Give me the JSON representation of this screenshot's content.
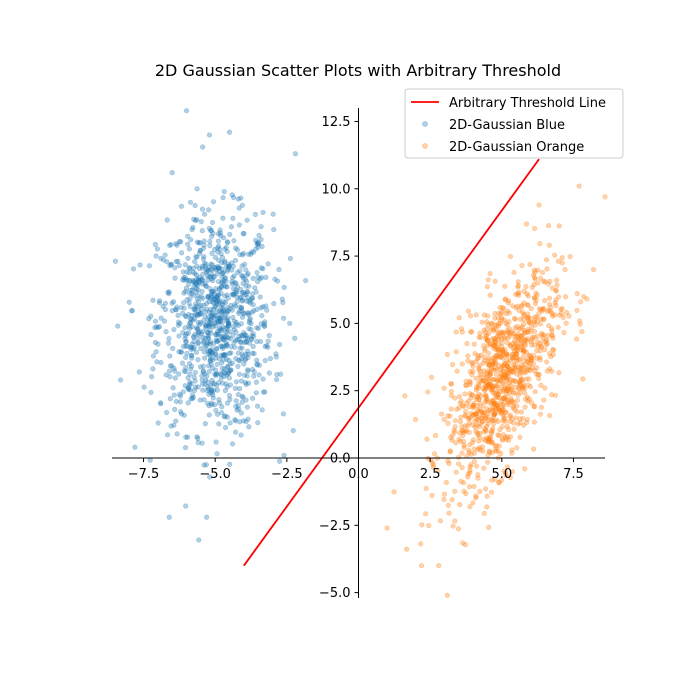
{
  "chart_data": {
    "type": "scatter",
    "title": "2D Gaussian Scatter Plots with Arbitrary Threshold",
    "xlabel": "",
    "ylabel": "",
    "xlim": [
      -8.6,
      8.6
    ],
    "ylim": [
      -5.2,
      13.0
    ],
    "xticks": [
      -7.5,
      -5.0,
      -2.5,
      0.0,
      2.5,
      5.0,
      7.5
    ],
    "xtick_labels": [
      "−7.5",
      "−5.0",
      "−2.5",
      "0.0",
      "2.5",
      "5.0",
      "7.5"
    ],
    "yticks": [
      -5.0,
      -2.5,
      0.0,
      2.5,
      5.0,
      7.5,
      10.0,
      12.5
    ],
    "ytick_labels": [
      "−5.0",
      "−2.5",
      "0.0",
      "2.5",
      "5.0",
      "7.5",
      "10.0",
      "12.5"
    ],
    "spines": "centered at origin (left and bottom), top and right hidden",
    "grid": false,
    "legend_position": "top-right",
    "threshold_line": {
      "name": "Arbitrary Threshold Line",
      "color": "#ff0000",
      "x": [
        -4.0,
        6.3
      ],
      "y": [
        -4.0,
        11.1
      ]
    },
    "series": [
      {
        "name": "2D-Gaussian Blue",
        "color": "#1f77b4",
        "alpha": 0.35,
        "n": 1000,
        "center": [
          -5.0,
          5.0
        ],
        "std": [
          1.0,
          2.0
        ],
        "correlation": 0.0,
        "sample_points": [
          [
            -6.0,
            12.9
          ],
          [
            -5.2,
            12.0
          ],
          [
            -4.5,
            12.1
          ],
          [
            -2.2,
            11.3
          ],
          [
            -6.5,
            10.6
          ],
          [
            -8.4,
            4.9
          ],
          [
            -8.3,
            2.9
          ],
          [
            -7.8,
            0.4
          ],
          [
            -6.6,
            -2.2
          ],
          [
            -5.3,
            -2.2
          ],
          [
            -2.6,
            0.1
          ],
          [
            -2.4,
            5.0
          ]
        ]
      },
      {
        "name": "2D-Gaussian Orange",
        "color": "#ff7f0e",
        "alpha": 0.35,
        "n": 1000,
        "center": [
          5.0,
          3.0
        ],
        "std": [
          1.0,
          2.0
        ],
        "correlation": 0.6,
        "sample_points": [
          [
            8.6,
            9.7
          ],
          [
            7.7,
            10.1
          ],
          [
            6.3,
            9.4
          ],
          [
            8.2,
            7.0
          ],
          [
            1.0,
            -2.6
          ],
          [
            2.2,
            -4.0
          ],
          [
            2.8,
            -4.0
          ],
          [
            3.1,
            -5.1
          ],
          [
            4.9,
            -0.9
          ],
          [
            5.8,
            -0.4
          ]
        ]
      }
    ],
    "legend": [
      {
        "label": "Arbitrary Threshold Line",
        "kind": "line",
        "color": "#ff0000"
      },
      {
        "label": "2D-Gaussian Blue",
        "kind": "marker",
        "color": "#1f77b4"
      },
      {
        "label": "2D-Gaussian Orange",
        "kind": "marker",
        "color": "#ff7f0e"
      }
    ]
  }
}
